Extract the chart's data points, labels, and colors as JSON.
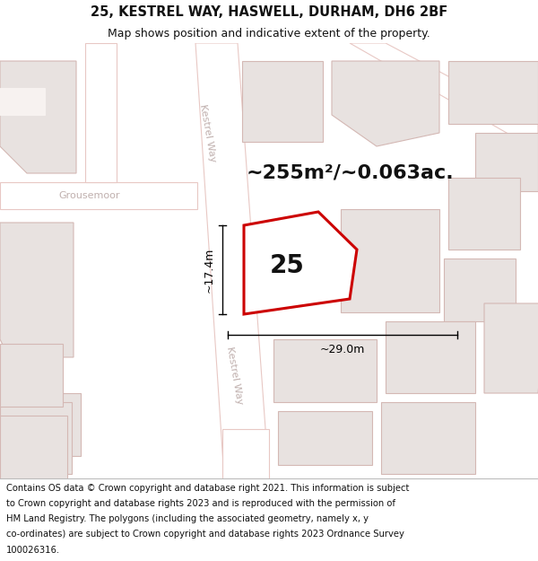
{
  "title_line1": "25, KESTREL WAY, HASWELL, DURHAM, DH6 2BF",
  "title_line2": "Map shows position and indicative extent of the property.",
  "area_text": "~255m²/~0.063ac.",
  "property_number": "25",
  "dim_width": "~29.0m",
  "dim_height": "~17.4m",
  "footer_lines": [
    "Contains OS data © Crown copyright and database right 2021. This information is subject",
    "to Crown copyright and database rights 2023 and is reproduced with the permission of",
    "HM Land Registry. The polygons (including the associated geometry, namely x, y",
    "co-ordinates) are subject to Crown copyright and database rights 2023 Ordnance Survey",
    "100026316."
  ],
  "bg_color": "#ffffff",
  "map_bg": "#f7f2f0",
  "outline_color": "#e8c8c4",
  "road_color": "#ffffff",
  "building_fill": "#e8e2e0",
  "building_edge": "#d4b8b4",
  "property_red": "#cc0000",
  "property_fill": "#ffffff",
  "dim_color": "#000000",
  "street_color": "#c0b0ae",
  "title_fontsize": 10.5,
  "subtitle_fontsize": 9,
  "area_fontsize": 16,
  "number_fontsize": 20,
  "dim_fontsize": 9,
  "street_fontsize": 8,
  "footer_fontsize": 7.2
}
